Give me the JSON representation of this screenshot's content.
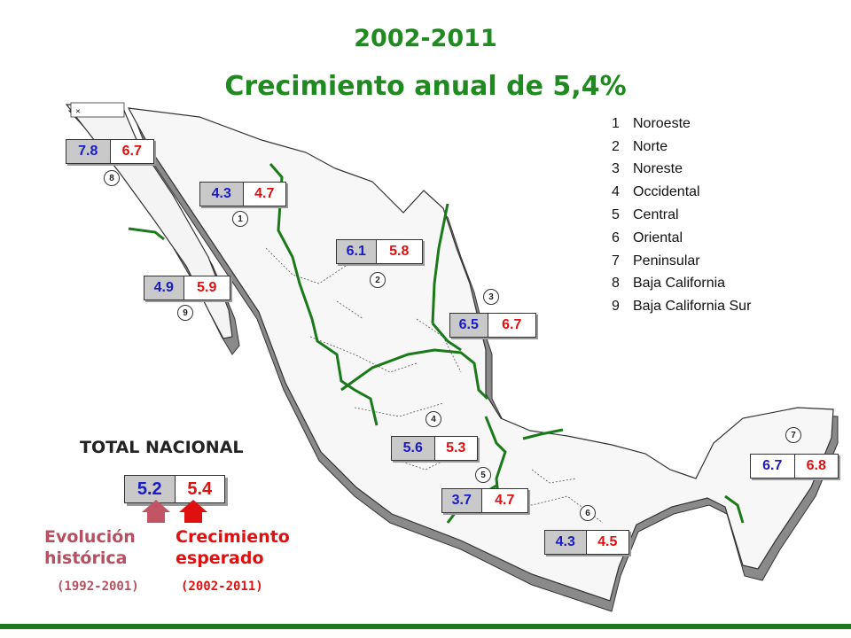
{
  "title": {
    "period": "2002-2011",
    "subtitle": "Crecimiento anual de 5,4%"
  },
  "colors": {
    "title": "#1f8a1f",
    "historical": "#1a1ac8",
    "expected": "#e01010",
    "border_line": "#1a7a1a"
  },
  "legend": [
    {
      "n": "1",
      "name": "Noroeste"
    },
    {
      "n": "2",
      "name": "Norte"
    },
    {
      "n": "3",
      "name": "Noreste"
    },
    {
      "n": "4",
      "name": "Occidental"
    },
    {
      "n": "5",
      "name": "Central"
    },
    {
      "n": "6",
      "name": "Oriental"
    },
    {
      "n": "7",
      "name": "Peninsular"
    },
    {
      "n": "8",
      "name": "Baja California"
    },
    {
      "n": "9",
      "name": "Baja California Sur"
    }
  ],
  "regions": [
    {
      "n": "8",
      "hist": "7.8",
      "exp": "6.7"
    },
    {
      "n": "1",
      "hist": "4.3",
      "exp": "4.7"
    },
    {
      "n": "2",
      "hist": "6.1",
      "exp": "5.8"
    },
    {
      "n": "9",
      "hist": "4.9",
      "exp": "5.9"
    },
    {
      "n": "3",
      "hist": "6.5",
      "exp": "6.7"
    },
    {
      "n": "4",
      "hist": "5.6",
      "exp": "5.3"
    },
    {
      "n": "5",
      "hist": "3.7",
      "exp": "4.7"
    },
    {
      "n": "6",
      "hist": "4.3",
      "exp": "4.5"
    },
    {
      "n": "7",
      "hist": "6.7",
      "exp": "6.8"
    }
  ],
  "total": {
    "title": "TOTAL NACIONAL",
    "hist": "5.2",
    "exp": "5.4",
    "hist_caption_1": "Evolución",
    "hist_caption_2": "histórica",
    "hist_period": "(1992-2001)",
    "exp_caption_1": "Crecimiento",
    "exp_caption_2": "esperado",
    "exp_period": "(2002-2011)"
  }
}
